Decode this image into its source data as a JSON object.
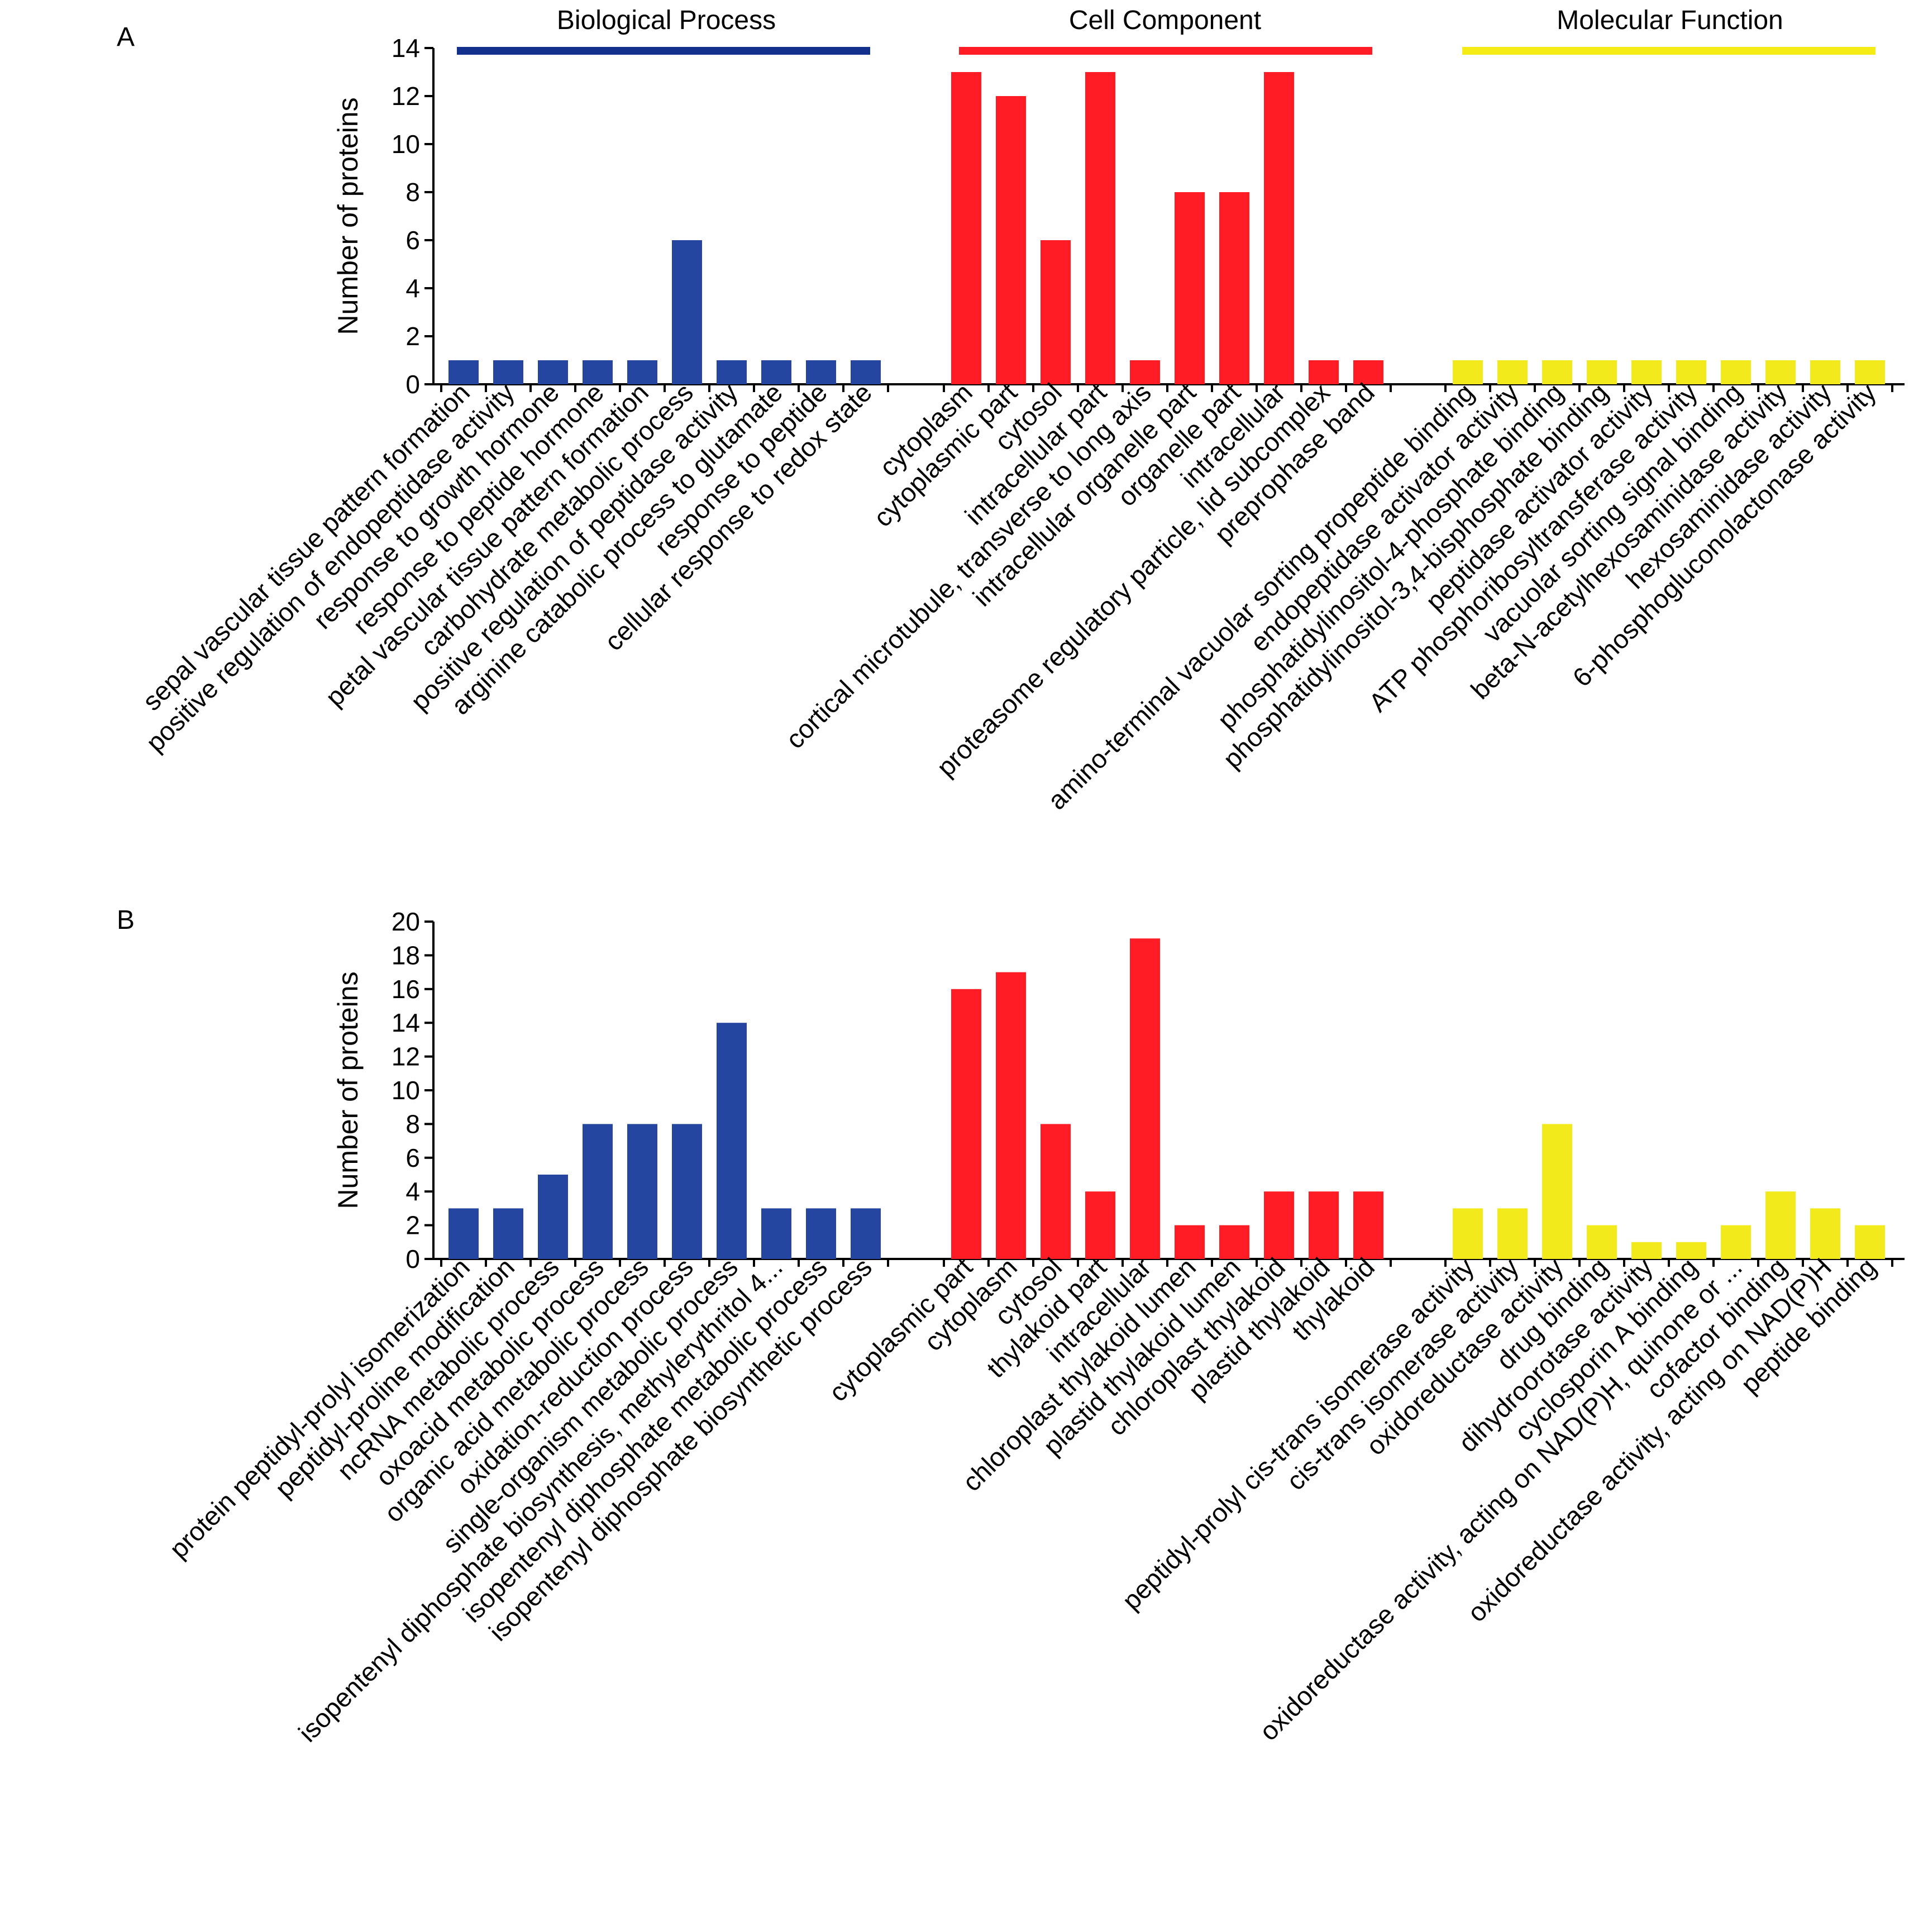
{
  "category_labels": [
    "Biological Process",
    "Cell Component",
    "Molecular Function"
  ],
  "colors": {
    "bp": "#2445a0",
    "cc": "#ff1c24",
    "mf": "#f2ea1a",
    "bp_header": "#13308c",
    "cc_header": "#ff1c24",
    "mf_header": "#f4ec14"
  },
  "chart_data": [
    {
      "panel": "A",
      "type": "bar",
      "ylabel": "Number of proteins",
      "ylim": [
        0,
        14
      ],
      "yticks": [
        0,
        2,
        4,
        6,
        8,
        10,
        12,
        14
      ],
      "groups": [
        {
          "name": "Biological Process",
          "color": "#2445a0",
          "categories": [
            "sepal vascular tissue pattern formation",
            "positive regulation of endopeptidase activity",
            "response to growth hormone",
            "response to peptide hormone",
            "petal vascular tissue pattern formation",
            "carbohydrate metabolic process",
            "positive regulation of peptidase activity",
            "arginine catabolic process to glutamate",
            "response to peptide",
            "cellular response to redox state"
          ],
          "values": [
            1,
            1,
            1,
            1,
            1,
            6,
            1,
            1,
            1,
            1
          ]
        },
        {
          "name": "Cell Component",
          "color": "#ff1c24",
          "categories": [
            "cytoplasm",
            "cytoplasmic part",
            "cytosol",
            "intracellular part",
            "cortical microtubule, transverse to long axis",
            "intracellular organelle part",
            "organelle part",
            "intracellular",
            "proteasome regulatory particle, lid subcomplex",
            "preprophase band"
          ],
          "values": [
            13,
            12,
            6,
            13,
            1,
            8,
            8,
            13,
            1,
            1
          ]
        },
        {
          "name": "Molecular Function",
          "color": "#f2ea1a",
          "categories": [
            "amino-terminal vacuolar sorting propeptide binding",
            "endopeptidase activator activity",
            "phosphatidylinositol-4-phosphate binding",
            "phosphatidylinositol-3,4-bisphosphate binding",
            "peptidase activator activity",
            "ATP phosphoribosyltransferase activity",
            "vacuolar sorting signal binding",
            "beta-N-acetylhexosaminidase activity",
            "hexosaminidase activity",
            "6-phosphogluconolactonase activity"
          ],
          "values": [
            1,
            1,
            1,
            1,
            1,
            1,
            1,
            1,
            1,
            1
          ]
        }
      ]
    },
    {
      "panel": "B",
      "type": "bar",
      "ylabel": "Number of proteins",
      "ylim": [
        0,
        20
      ],
      "yticks": [
        0,
        2,
        4,
        6,
        8,
        10,
        12,
        14,
        16,
        18,
        20
      ],
      "groups": [
        {
          "name": "Biological Process",
          "color": "#2445a0",
          "categories": [
            "protein peptidyl-prolyl isomerization",
            "peptidyl-proline modification",
            "ncRNA metabolic process",
            "oxoacid metabolic process",
            "organic acid metabolic process",
            "oxidation-reduction process",
            "single-organism metabolic process",
            "isopentenyl diphosphate biosynthesis, methylerythritol 4...",
            "isopentenyl diphosphate metabolic process",
            "isopentenyl diphosphate biosynthetic process"
          ],
          "values": [
            3,
            3,
            5,
            8,
            8,
            8,
            14,
            3,
            3,
            3
          ]
        },
        {
          "name": "Cell Component",
          "color": "#ff1c24",
          "categories": [
            "cytoplasmic part",
            "cytoplasm",
            "cytosol",
            "thylakoid part",
            "intracellular",
            "chloroplast thylakoid lumen",
            "plastid thylakoid lumen",
            "chloroplast thylakoid",
            "plastid thylakoid",
            "thylakoid"
          ],
          "values": [
            16,
            17,
            8,
            4,
            19,
            2,
            2,
            4,
            4,
            4
          ]
        },
        {
          "name": "Molecular Function",
          "color": "#f2ea1a",
          "categories": [
            "peptidyl-prolyl cis-trans isomerase activity",
            "cis-trans isomerase activity",
            "oxidoreductase activity",
            "drug binding",
            "dihydroorotase activity",
            "cyclosporin A binding",
            "oxidoreductase activity, acting on NAD(P)H, quinone or ...",
            "cofactor binding",
            "oxidoreductase activity, acting on NAD(P)H",
            "peptide binding"
          ],
          "values": [
            3,
            3,
            8,
            2,
            1,
            1,
            2,
            4,
            3,
            2
          ]
        }
      ]
    }
  ]
}
